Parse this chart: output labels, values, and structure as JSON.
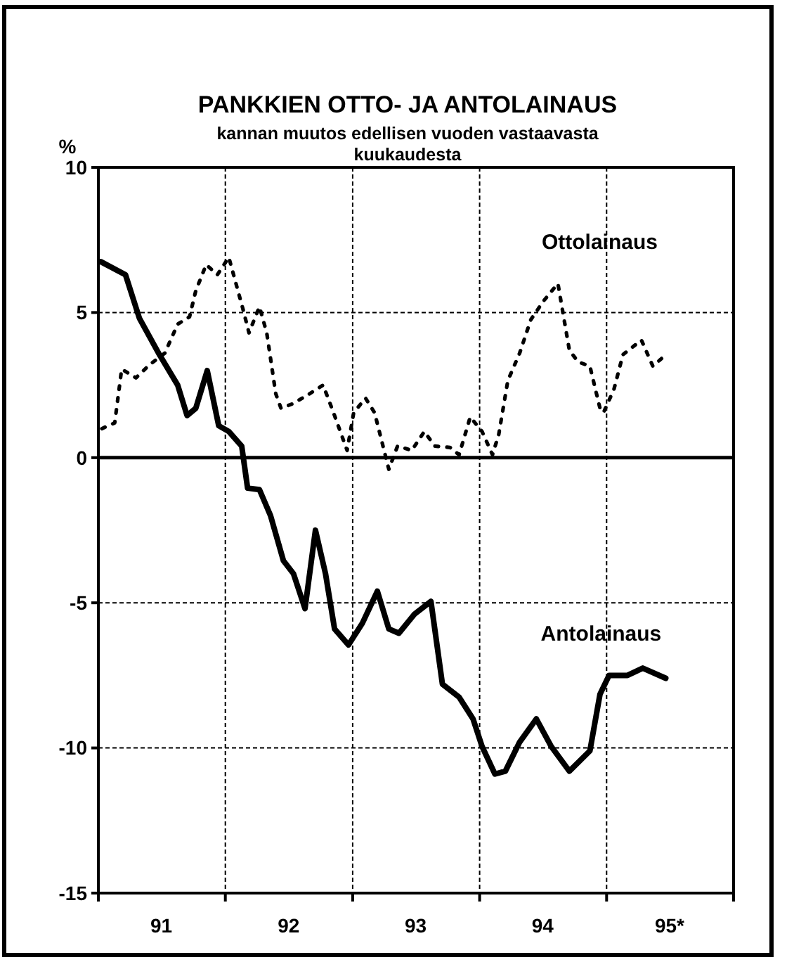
{
  "chart_data": {
    "type": "line",
    "title": "PANKKIEN OTTO- JA ANTOLAINAUS",
    "subtitle": "kannan muutos edellisen vuoden vastaavasta kuukaudesta",
    "ylabel": "%",
    "xlim": [
      "1991-01-01",
      "1996-01-01"
    ],
    "xticks": [
      {
        "value": "1991-01-01",
        "label": null
      },
      {
        "value": "1992-01-01",
        "label": null
      },
      {
        "value": "1993-01-01",
        "label": null
      },
      {
        "value": "1994-01-01",
        "label": null
      },
      {
        "value": "1995-01-01",
        "label": null
      },
      {
        "value": "1996-01-01",
        "label": null
      },
      {
        "value": "1991-07-01",
        "label": "91"
      },
      {
        "value": "1992-07-01",
        "label": "92"
      },
      {
        "value": "1993-07-01",
        "label": "93"
      },
      {
        "value": "1994-07-01",
        "label": "94"
      },
      {
        "value": "1995-07-01",
        "label": "95*"
      }
    ],
    "ylim": [
      -15,
      10
    ],
    "yticks": [
      -15,
      -10,
      -5,
      0,
      5,
      10
    ],
    "grid": true,
    "ref_lines": [
      {
        "axis": "y",
        "value": 0
      }
    ],
    "series": [
      {
        "name": "Ottolainaus",
        "color": "#000000",
        "line_style": "dotted",
        "x": [
          "1991-01-11",
          "1991-02-17",
          "1991-03-09",
          "1991-04-19",
          "1991-05-28",
          "1991-07-11",
          "1991-08-17",
          "1991-09-20",
          "1991-10-08",
          "1991-11-07",
          "1991-12-09",
          "1992-01-11",
          "1992-02-21",
          "1992-03-09",
          "1992-04-08",
          "1992-04-29",
          "1992-05-25",
          "1992-06-09",
          "1992-07-11",
          "1992-08-17",
          "1992-10-08",
          "1992-11-07",
          "1992-12-16",
          "1993-01-04",
          "1993-02-07",
          "1993-03-05",
          "1993-04-15",
          "1993-05-10",
          "1993-06-20",
          "1993-07-26",
          "1993-08-25",
          "1993-10-08",
          "1993-11-03",
          "1993-12-05",
          "1994-01-08",
          "1994-02-07",
          "1994-02-25",
          "1994-03-23",
          "1994-04-26",
          "1994-05-28",
          "1994-07-04",
          "1994-08-14",
          "1994-09-16",
          "1994-10-11",
          "1994-11-14",
          "1994-12-13",
          "1994-12-23",
          "1995-01-22",
          "1995-02-17",
          "1995-04-11",
          "1995-05-14",
          "1995-06-16"
        ],
        "values": [
          1.0,
          1.2,
          3.05,
          2.75,
          3.2,
          3.6,
          4.6,
          4.85,
          5.75,
          6.65,
          6.3,
          6.9,
          5.1,
          4.3,
          5.2,
          4.3,
          2.2,
          1.7,
          1.85,
          2.1,
          2.5,
          1.55,
          0.25,
          1.55,
          2.05,
          1.55,
          -0.4,
          0.4,
          0.25,
          0.9,
          0.4,
          0.35,
          0.1,
          1.4,
          0.9,
          0.1,
          0.8,
          2.65,
          3.6,
          4.75,
          5.4,
          6.0,
          3.7,
          3.3,
          3.15,
          1.7,
          1.55,
          2.35,
          3.55,
          4.05,
          3.15,
          3.5
        ]
      },
      {
        "name": "Antolainaus",
        "color": "#000000",
        "line_style": "solid",
        "x": [
          "1991-01-08",
          "1991-03-20",
          "1991-04-29",
          "1991-06-23",
          "1991-08-17",
          "1991-09-13",
          "1991-10-08",
          "1991-11-10",
          "1991-12-13",
          "1992-01-11",
          "1992-02-17",
          "1992-03-05",
          "1992-04-08",
          "1992-05-10",
          "1992-06-16",
          "1992-07-15",
          "1992-08-17",
          "1992-09-16",
          "1992-10-15",
          "1992-11-10",
          "1992-12-20",
          "1993-01-29",
          "1993-03-13",
          "1993-04-15",
          "1993-05-14",
          "1993-06-27",
          "1993-08-14",
          "1993-09-16",
          "1993-11-03",
          "1993-12-13",
          "1994-01-08",
          "1994-02-14",
          "1994-03-16",
          "1994-04-26",
          "1994-06-13",
          "1994-07-26",
          "1994-09-16",
          "1994-11-14",
          "1994-12-13",
          "1995-01-08",
          "1995-03-02",
          "1995-04-15",
          "1995-06-20"
        ],
        "values": [
          6.75,
          6.3,
          4.8,
          3.6,
          2.5,
          1.45,
          1.7,
          3.0,
          1.1,
          0.9,
          0.4,
          -1.05,
          -1.1,
          -2.0,
          -3.55,
          -4.0,
          -5.2,
          -2.5,
          -4.0,
          -5.9,
          -6.45,
          -5.7,
          -4.6,
          -5.9,
          -6.05,
          -5.4,
          -4.95,
          -7.8,
          -8.25,
          -9.0,
          -9.95,
          -10.9,
          -10.8,
          -9.8,
          -9.0,
          -9.95,
          -10.8,
          -10.1,
          -8.15,
          -7.5,
          -7.5,
          -7.25,
          -7.6
        ]
      }
    ]
  }
}
